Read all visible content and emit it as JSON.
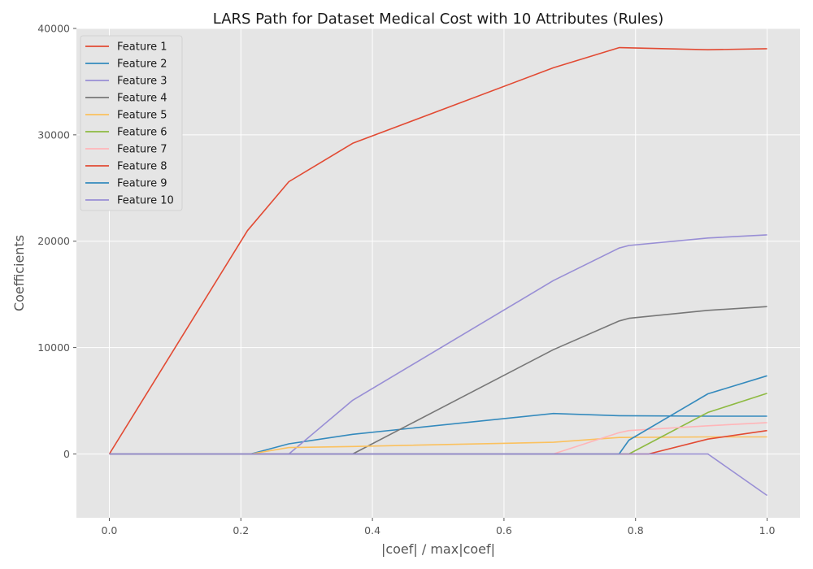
{
  "chart_data": {
    "type": "line",
    "title": "LARS Path for Dataset Medical Cost with 10 Attributes (Rules)",
    "xlabel": "|coef| / max|coef|",
    "ylabel": "Coefficients",
    "xlim": [
      -0.05,
      1.05
    ],
    "ylim": [
      -6000,
      40000
    ],
    "x_ticks": [
      0.0,
      0.2,
      0.4,
      0.6,
      0.8,
      1.0
    ],
    "x_tick_labels": [
      "0.0",
      "0.2",
      "0.4",
      "0.6",
      "0.8",
      "1.0"
    ],
    "y_ticks": [
      0,
      10000,
      20000,
      30000,
      40000
    ],
    "y_tick_labels": [
      "0",
      "10000",
      "20000",
      "30000",
      "40000"
    ],
    "grid": true,
    "legend_position": "top-left",
    "series": [
      {
        "name": "Feature 1",
        "color": "#E24A33",
        "points": [
          [
            0,
            0
          ],
          [
            0.21,
            21000
          ],
          [
            0.273,
            25600
          ],
          [
            0.37,
            29200
          ],
          [
            0.675,
            36300
          ],
          [
            0.775,
            38200
          ],
          [
            0.91,
            38000
          ],
          [
            1.0,
            38100
          ]
        ]
      },
      {
        "name": "Feature 2",
        "color": "#348ABD",
        "points": [
          [
            0,
            0
          ],
          [
            0.215,
            0
          ],
          [
            0.273,
            950
          ],
          [
            0.37,
            1850
          ],
          [
            0.675,
            3800
          ],
          [
            0.775,
            3600
          ],
          [
            0.91,
            3550
          ],
          [
            1.0,
            3550
          ]
        ]
      },
      {
        "name": "Feature 3",
        "color": "#988ED5",
        "points": [
          [
            0,
            0
          ],
          [
            0.273,
            0
          ],
          [
            0.37,
            5050
          ],
          [
            0.675,
            16300
          ],
          [
            0.775,
            19350
          ],
          [
            0.79,
            19600
          ],
          [
            0.91,
            20300
          ],
          [
            1.0,
            20600
          ]
        ]
      },
      {
        "name": "Feature 4",
        "color": "#777777",
        "points": [
          [
            0,
            0
          ],
          [
            0.37,
            0
          ],
          [
            0.675,
            9800
          ],
          [
            0.775,
            12500
          ],
          [
            0.79,
            12750
          ],
          [
            0.91,
            13500
          ],
          [
            1.0,
            13850
          ]
        ]
      },
      {
        "name": "Feature 5",
        "color": "#FBC15E",
        "points": [
          [
            0,
            0
          ],
          [
            0.215,
            0
          ],
          [
            0.273,
            600
          ],
          [
            0.37,
            700
          ],
          [
            0.675,
            1100
          ],
          [
            0.775,
            1550
          ],
          [
            0.91,
            1600
          ],
          [
            1.0,
            1600
          ]
        ]
      },
      {
        "name": "Feature 6",
        "color": "#8EBA42",
        "points": [
          [
            0,
            0
          ],
          [
            0.79,
            0
          ],
          [
            0.91,
            3900
          ],
          [
            1.0,
            5700
          ]
        ]
      },
      {
        "name": "Feature 7",
        "color": "#FFB5B8",
        "points": [
          [
            0,
            0
          ],
          [
            0.675,
            0
          ],
          [
            0.775,
            2000
          ],
          [
            0.79,
            2200
          ],
          [
            0.91,
            2650
          ],
          [
            1.0,
            2950
          ]
        ]
      },
      {
        "name": "Feature 8",
        "color": "#E24A33",
        "points": [
          [
            0,
            0
          ],
          [
            0.82,
            0
          ],
          [
            0.91,
            1400
          ],
          [
            1.0,
            2200
          ]
        ]
      },
      {
        "name": "Feature 9",
        "color": "#348ABD",
        "points": [
          [
            0,
            0
          ],
          [
            0.775,
            0
          ],
          [
            0.79,
            1300
          ],
          [
            0.91,
            5650
          ],
          [
            1.0,
            7350
          ]
        ]
      },
      {
        "name": "Feature 10",
        "color": "#988ED5",
        "points": [
          [
            0,
            0
          ],
          [
            0.91,
            0
          ],
          [
            1.0,
            -3900
          ]
        ]
      }
    ]
  }
}
